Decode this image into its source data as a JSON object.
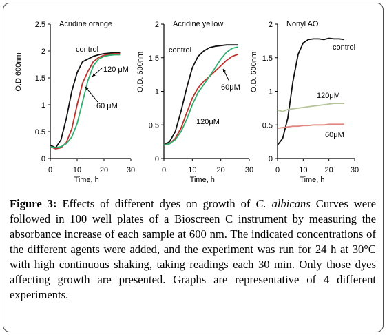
{
  "chart_data": [
    {
      "type": "line",
      "title": "Acridine orange",
      "xlabel": "Time, h",
      "ylabel": "O.D 600nm",
      "xlim": [
        0,
        30
      ],
      "ylim": [
        0,
        2.5
      ],
      "x_ticks": [
        "0",
        "10",
        "20",
        "30"
      ],
      "y_ticks": [
        "0",
        "0.5",
        "1",
        "1.5",
        "2",
        "2.5"
      ],
      "annotations": [
        "control",
        "120 μM",
        "60 μM"
      ],
      "series": [
        {
          "name": "control",
          "color": "#111111",
          "x": [
            0,
            2,
            4,
            6,
            8,
            10,
            12,
            14,
            16,
            18,
            20,
            22,
            24,
            26
          ],
          "y": [
            0.25,
            0.2,
            0.35,
            0.75,
            1.25,
            1.6,
            1.8,
            1.85,
            1.9,
            1.93,
            1.95,
            1.96,
            1.97,
            1.97
          ]
        },
        {
          "name": "120 μM",
          "color": "#c0302b",
          "x": [
            0,
            2,
            4,
            6,
            8,
            10,
            12,
            14,
            16,
            18,
            20,
            22,
            24,
            26
          ],
          "y": [
            0.22,
            0.18,
            0.2,
            0.3,
            0.55,
            1.0,
            1.4,
            1.62,
            1.8,
            1.88,
            1.92,
            1.94,
            1.95,
            1.95
          ]
        },
        {
          "name": "60 μM",
          "color": "#2fae6e",
          "x": [
            0,
            2,
            4,
            6,
            8,
            10,
            12,
            14,
            16,
            18,
            20,
            22,
            24,
            26
          ],
          "y": [
            0.22,
            0.2,
            0.22,
            0.28,
            0.4,
            0.65,
            1.05,
            1.45,
            1.72,
            1.85,
            1.9,
            1.92,
            1.93,
            1.93
          ]
        }
      ]
    },
    {
      "type": "line",
      "title": "Acridine yellow",
      "xlabel": "Time, h",
      "ylabel": "O.D. 600nm",
      "xlim": [
        0,
        30
      ],
      "ylim": [
        0,
        2
      ],
      "x_ticks": [
        "0",
        "10",
        "20",
        "30"
      ],
      "y_ticks": [
        "0",
        "0.5",
        "1",
        "1.5",
        "2"
      ],
      "annotations": [
        "control",
        "60μM",
        "120μM"
      ],
      "series": [
        {
          "name": "control",
          "color": "#111111",
          "x": [
            0,
            2,
            4,
            6,
            8,
            10,
            12,
            14,
            16,
            18,
            20,
            22,
            24,
            26
          ],
          "y": [
            0.2,
            0.25,
            0.4,
            0.7,
            1.05,
            1.35,
            1.52,
            1.6,
            1.65,
            1.67,
            1.68,
            1.69,
            1.69,
            1.69
          ]
        },
        {
          "name": "60μM",
          "color": "#c0302b",
          "x": [
            0,
            2,
            4,
            6,
            8,
            10,
            12,
            14,
            16,
            18,
            20,
            22,
            24,
            26
          ],
          "y": [
            0.2,
            0.22,
            0.3,
            0.45,
            0.68,
            0.9,
            1.05,
            1.15,
            1.22,
            1.3,
            1.38,
            1.46,
            1.52,
            1.55
          ]
        },
        {
          "name": "120μM",
          "color": "#2fae6e",
          "x": [
            0,
            2,
            4,
            6,
            8,
            10,
            12,
            14,
            16,
            18,
            20,
            22,
            24,
            26
          ],
          "y": [
            0.2,
            0.22,
            0.28,
            0.4,
            0.58,
            0.8,
            0.98,
            1.1,
            1.22,
            1.35,
            1.48,
            1.58,
            1.64,
            1.66
          ]
        }
      ]
    },
    {
      "type": "line",
      "title": "Nonyl AO",
      "xlabel": "Time, h",
      "ylabel": "O.D. 600nm",
      "xlim": [
        0,
        30
      ],
      "ylim": [
        0,
        2
      ],
      "x_ticks": [
        "0",
        "10",
        "20",
        "30"
      ],
      "y_ticks": [
        "0",
        "0.5",
        "1",
        "1.5",
        "2"
      ],
      "annotations": [
        "control",
        "120μM",
        "60μM"
      ],
      "series": [
        {
          "name": "control",
          "color": "#111111",
          "x": [
            0,
            2,
            4,
            6,
            8,
            10,
            12,
            14,
            16,
            18,
            20,
            22,
            24,
            26
          ],
          "y": [
            0.2,
            0.3,
            0.6,
            1.15,
            1.55,
            1.72,
            1.77,
            1.78,
            1.78,
            1.77,
            1.79,
            1.78,
            1.78,
            1.77
          ]
        },
        {
          "name": "120μM",
          "color": "#b5c49a",
          "x": [
            0,
            2,
            4,
            6,
            8,
            10,
            12,
            14,
            16,
            18,
            20,
            22,
            24,
            26
          ],
          "y": [
            0.72,
            0.7,
            0.73,
            0.74,
            0.75,
            0.76,
            0.77,
            0.78,
            0.79,
            0.8,
            0.81,
            0.82,
            0.82,
            0.82
          ]
        },
        {
          "name": "60μM",
          "color": "#e08880",
          "x": [
            0,
            2,
            4,
            6,
            8,
            10,
            12,
            14,
            16,
            18,
            20,
            22,
            24,
            26
          ],
          "y": [
            0.45,
            0.46,
            0.47,
            0.48,
            0.48,
            0.49,
            0.49,
            0.5,
            0.5,
            0.5,
            0.51,
            0.51,
            0.51,
            0.51
          ]
        }
      ]
    }
  ],
  "caption": {
    "figure_label": "Figure 3:",
    "text_before": " Effects of different dyes on growth of ",
    "species": "C. albicans",
    "text_after": " Curves were followed in 100 well plates of a Bioscreen C instrument by measuring the absorbance increase of each sample at 600 nm. The indicated concentrations of the different agents were added, and the experiment was run for 24 h at 30°C with high continuous shaking, taking readings each 30 min. Only those dyes affecting growth are presented. Graphs are representative of 4 different experiments."
  }
}
